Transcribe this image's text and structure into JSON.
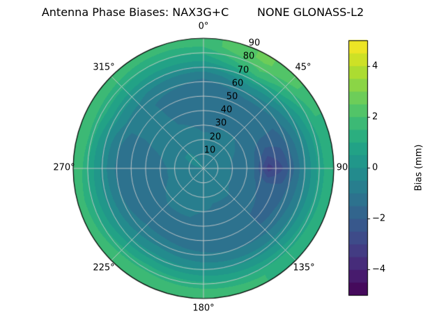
{
  "chart_data": {
    "type": "heatmap",
    "projection": "polar",
    "title": "Antenna Phase Biases: NAX3G+C        NONE GLONASS-L2",
    "colormap": "viridis",
    "grid_color": "#cccccc",
    "outline_color": "#000000",
    "background_color": "#ffffff",
    "theta_labels": [
      "0°",
      "45°",
      "90",
      "135°",
      "180°",
      "225°",
      "270°",
      "315°"
    ],
    "theta_angles_deg": [
      0,
      45,
      90,
      135,
      180,
      225,
      270,
      315
    ],
    "r_tick_labels": [
      "10",
      "20",
      "30",
      "40",
      "50",
      "60",
      "70",
      "80",
      "90"
    ],
    "r_range": [
      0,
      90
    ],
    "r_label_angle_deg": 22.5,
    "azimuth_deg": [
      0,
      15,
      30,
      45,
      60,
      75,
      90,
      105,
      120,
      135,
      150,
      165,
      180,
      195,
      210,
      225,
      240,
      255,
      270,
      285,
      300,
      315,
      330,
      345
    ],
    "r_centers": [
      5,
      15,
      25,
      35,
      45,
      55,
      65,
      75,
      85
    ],
    "values": [
      [
        -0.6,
        -0.8,
        -1.0,
        -1.2,
        -1.4,
        -1.5,
        -0.8,
        0.6,
        1.6
      ],
      [
        -0.6,
        -0.8,
        -1.0,
        -1.1,
        -1.3,
        -1.3,
        -0.4,
        1.2,
        2.3
      ],
      [
        -0.6,
        -0.8,
        -0.9,
        -1.1,
        -1.2,
        -1.1,
        0.0,
        1.8,
        2.6
      ],
      [
        -0.6,
        -0.8,
        -0.9,
        -1.1,
        -1.2,
        -1.2,
        -0.3,
        1.2,
        2.2
      ],
      [
        -0.6,
        -0.8,
        -1.0,
        -1.2,
        -1.4,
        -1.5,
        -0.7,
        0.5,
        1.6
      ],
      [
        -0.7,
        -0.9,
        -1.1,
        -1.4,
        -2.2,
        -2.0,
        -1.0,
        0.2,
        1.3
      ],
      [
        -0.7,
        -0.9,
        -1.2,
        -1.5,
        -3.3,
        -2.5,
        -1.2,
        0.1,
        1.2
      ],
      [
        -0.7,
        -0.9,
        -1.1,
        -1.4,
        -1.8,
        -1.8,
        -1.0,
        0.1,
        1.2
      ],
      [
        -0.7,
        -0.9,
        -1.1,
        -1.3,
        -1.6,
        -1.6,
        -0.9,
        0.2,
        1.3
      ],
      [
        -0.6,
        -0.9,
        -1.0,
        -1.2,
        -1.5,
        -1.5,
        -0.8,
        0.3,
        1.4
      ],
      [
        -0.6,
        -0.8,
        -1.0,
        -1.2,
        -1.4,
        -1.4,
        -0.7,
        0.4,
        1.5
      ],
      [
        -0.6,
        -0.8,
        -1.0,
        -1.1,
        -1.3,
        -1.3,
        -0.6,
        0.5,
        1.6
      ],
      [
        -0.6,
        -0.8,
        -0.9,
        -1.1,
        -1.2,
        -1.2,
        -0.5,
        0.6,
        1.7
      ],
      [
        -0.6,
        -0.8,
        -0.9,
        -1.0,
        -1.2,
        -1.1,
        -0.4,
        0.7,
        1.8
      ],
      [
        -0.6,
        -0.7,
        -0.9,
        -1.0,
        -1.1,
        -1.0,
        -0.3,
        0.8,
        1.9
      ],
      [
        -0.6,
        -0.7,
        -0.8,
        -1.0,
        -1.1,
        -1.0,
        -0.4,
        0.7,
        1.8
      ],
      [
        -0.6,
        -0.8,
        -0.9,
        -1.1,
        -1.2,
        -1.2,
        -0.5,
        0.5,
        1.6
      ],
      [
        -0.6,
        -0.8,
        -1.0,
        -1.2,
        -1.4,
        -1.4,
        -0.6,
        0.4,
        1.5
      ],
      [
        -0.6,
        -0.8,
        -1.0,
        -1.2,
        -1.5,
        -1.5,
        -0.7,
        0.4,
        1.7
      ],
      [
        -0.5,
        -0.7,
        -0.9,
        -1.1,
        -1.3,
        -1.3,
        -0.6,
        0.5,
        1.9
      ],
      [
        -0.3,
        -0.5,
        -0.6,
        -0.8,
        -0.9,
        -0.9,
        -0.3,
        0.8,
        1.7
      ],
      [
        -0.3,
        -0.5,
        -0.6,
        -0.7,
        -0.8,
        -0.9,
        -0.4,
        0.7,
        1.6
      ],
      [
        -0.5,
        -0.6,
        -0.8,
        -1.0,
        -1.1,
        -1.1,
        -0.6,
        0.6,
        1.5
      ],
      [
        -0.6,
        -0.7,
        -0.9,
        -1.1,
        -1.3,
        -1.2,
        -0.7,
        0.6,
        1.5
      ]
    ],
    "colorbar": {
      "label": "Bias (mm)",
      "range": [
        -5,
        5
      ],
      "levels_step": 0.5,
      "ticks": [
        4,
        2,
        0,
        -2,
        -4
      ],
      "tick_labels": [
        "4",
        "2",
        "0",
        "−2",
        "−4"
      ]
    }
  }
}
